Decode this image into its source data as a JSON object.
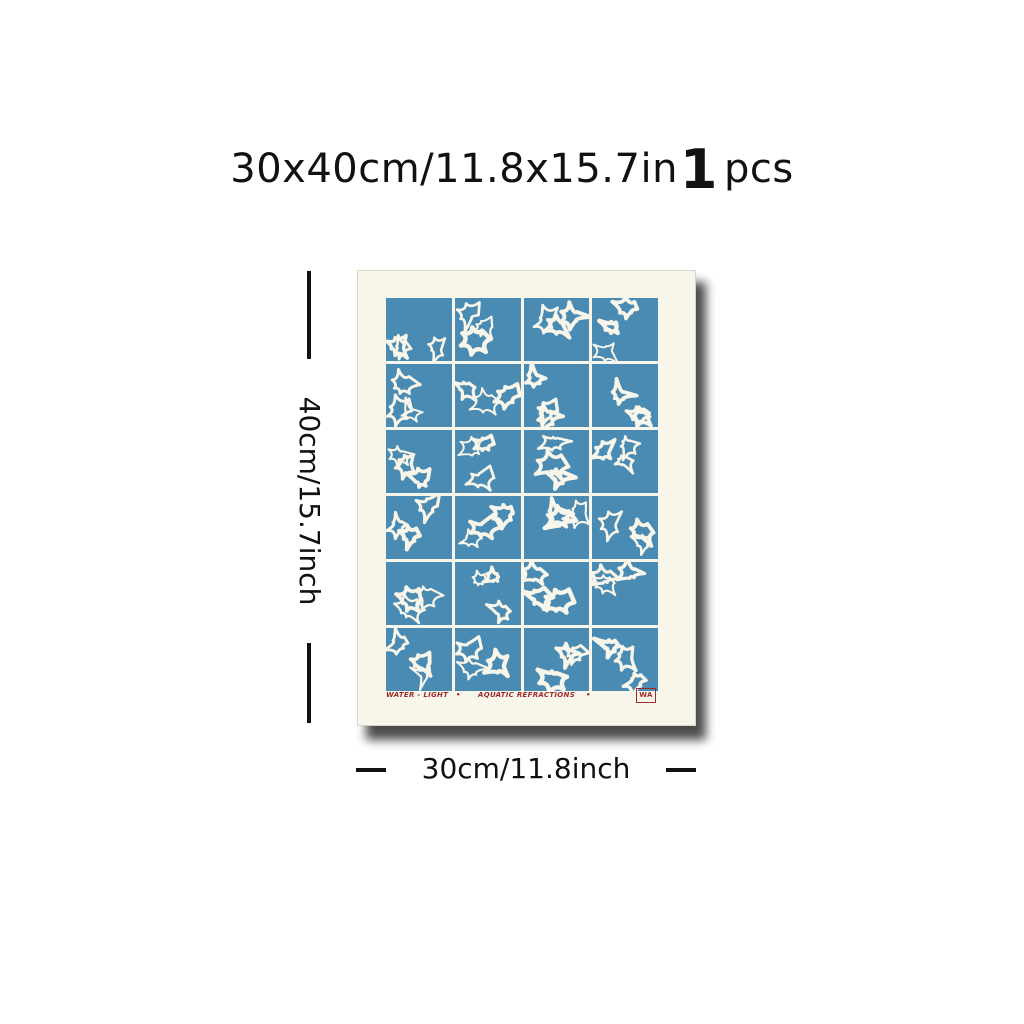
{
  "header": {
    "size_text": "30x40cm/11.8x15.7in",
    "quantity": "1",
    "quantity_unit": "pcs"
  },
  "dimensions": {
    "height_label": "40cm/15.7inch",
    "width_label": "30cm/11.8inch"
  },
  "poster": {
    "caption_left": "WATER - LIGHT",
    "caption_separator": "•",
    "caption_title": "AQUATIC REFRACTIONS",
    "logo_text": "WA",
    "tile_color": "#4a8bb3",
    "paper_color": "#f8f6ea",
    "caption_color": "#9e2a2a",
    "grid_columns": 4,
    "grid_rows": 6
  }
}
